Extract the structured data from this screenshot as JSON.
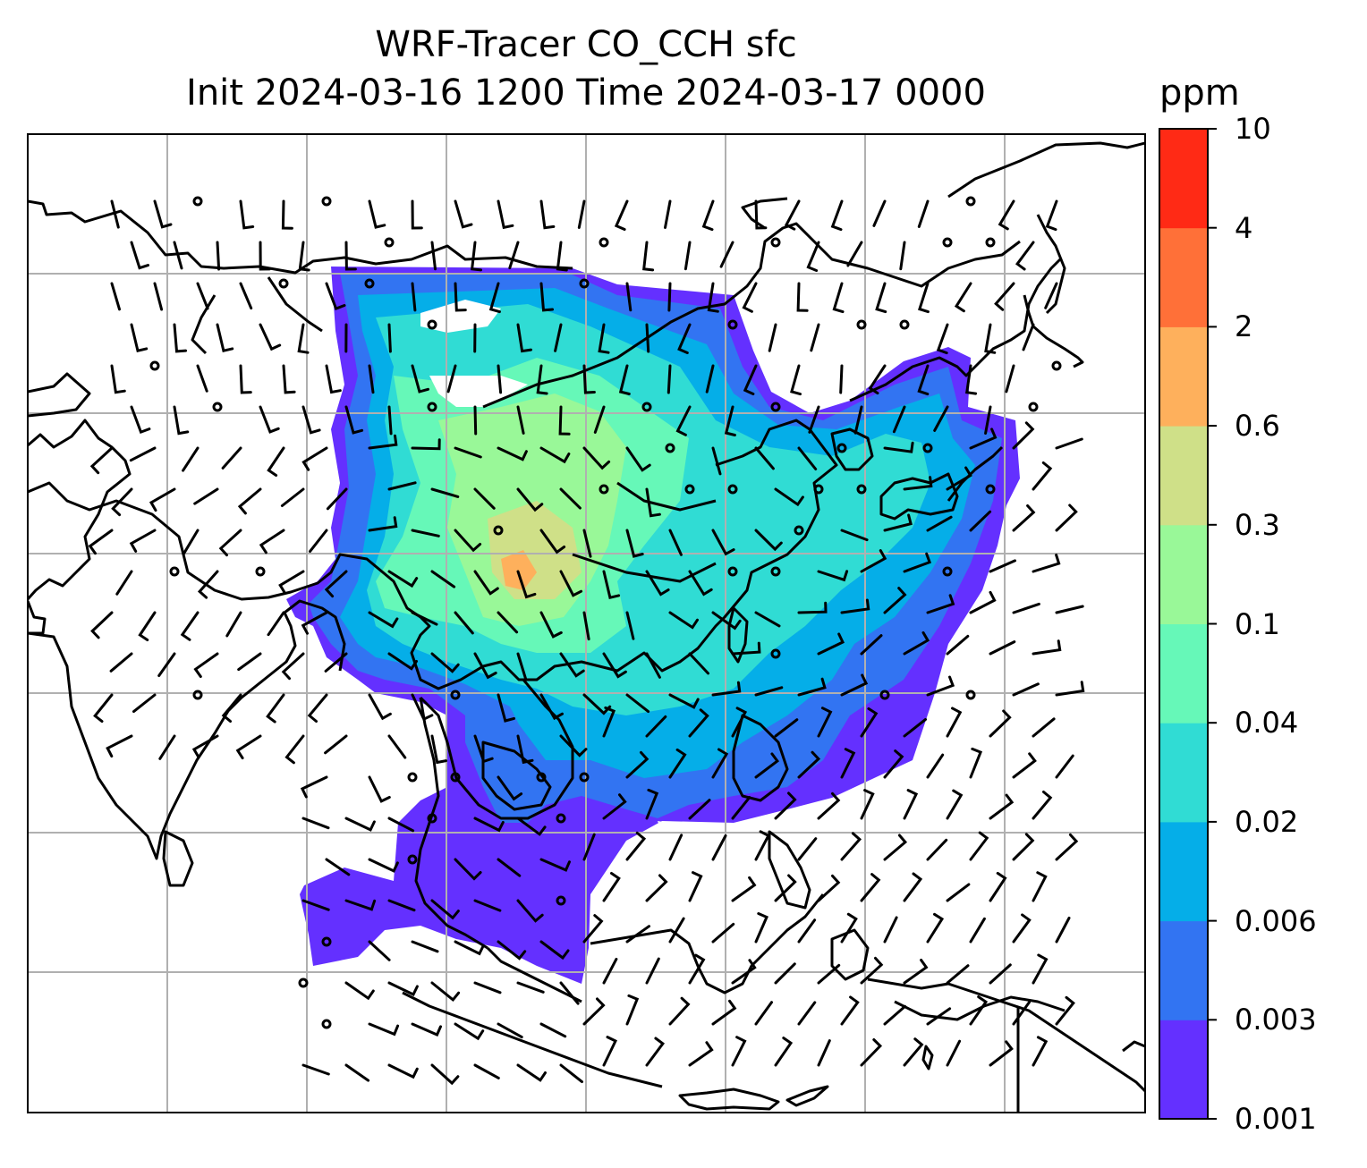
{
  "title": {
    "line1": "WRF-Tracer CO_CCH sfc",
    "line2": "Init 2024-03-16 1200 Time 2024-03-17 0000"
  },
  "colorbar": {
    "unit": "ppm",
    "levels": [
      "0.001",
      "0.003",
      "0.006",
      "0.02",
      "0.04",
      "0.1",
      "0.3",
      "0.6",
      "2",
      "4",
      "10"
    ],
    "colors": [
      "#6430ff",
      "#3274f2",
      "#05aee8",
      "#30dcd4",
      "#66f8b8",
      "#99f898",
      "#cfe088",
      "#feb05c",
      "#ff7038",
      "#ff2a15"
    ]
  },
  "map": {
    "grid": "on",
    "coastline_color": "#000000",
    "grid_color": "#b0b0b0",
    "wind_barbs": "black barbs over the domain, calm circles where wind is light"
  }
}
